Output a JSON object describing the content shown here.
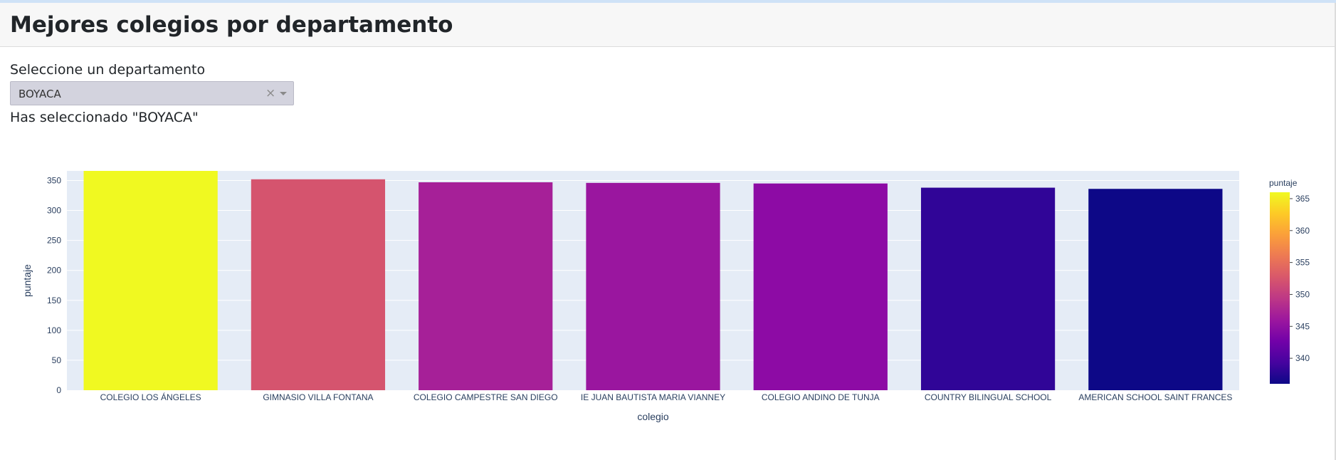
{
  "page": {
    "title": "Mejores colegios por departamento"
  },
  "selector": {
    "label": "Seleccione un departamento",
    "value": "BOYACA",
    "clear_icon": "×",
    "arrow_icon": "chevron-down-icon"
  },
  "output": {
    "text": "Has seleccionado \"BOYACA\""
  },
  "chart_data": {
    "type": "bar",
    "categories": [
      "COLEGIO LOS ÁNGELES",
      "GIMNASIO VILLA FONTANA",
      "COLEGIO CAMPESTRE SAN DIEGO",
      "IE JUAN BAUTISTA MARIA VIANNEY",
      "COLEGIO ANDINO DE TUNJA",
      "COUNTRY BILINGUAL SCHOOL",
      "AMERICAN SCHOOL SAINT FRANCES"
    ],
    "values": [
      366,
      352,
      347,
      346,
      345,
      338,
      336
    ],
    "colors": [
      "#f0f921",
      "#d5546e",
      "#a62098",
      "#9a169f",
      "#8d0ba5",
      "#300597",
      "#0d0887"
    ],
    "xlabel": "colegio",
    "ylabel": "puntaje",
    "ylim": [
      0,
      366
    ],
    "yticks": [
      0,
      50,
      100,
      150,
      200,
      250,
      300,
      350
    ],
    "grid": true,
    "plot_bg": "#e5ecf6",
    "colorbar": {
      "title": "puntaje",
      "min": 336,
      "max": 366,
      "ticks": [
        340,
        345,
        350,
        355,
        360,
        365
      ],
      "colors": [
        "#0d0887",
        "#46039f",
        "#7201a8",
        "#9c179e",
        "#bd3786",
        "#d8576b",
        "#ed7953",
        "#fb9f3a",
        "#fdca26",
        "#f0f921"
      ]
    }
  }
}
